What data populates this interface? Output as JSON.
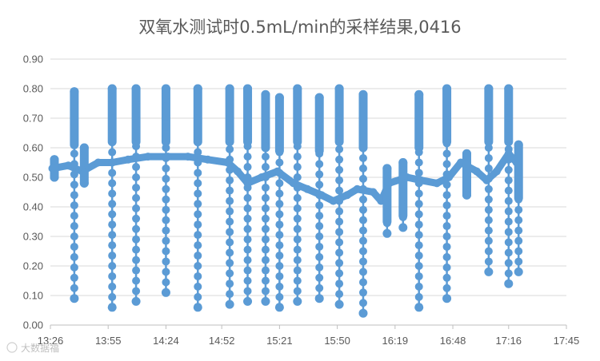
{
  "chart_data": {
    "type": "line",
    "title": "双氧水测试时0.5mL/min的采样结果,0416",
    "xlabel": "",
    "ylabel": "",
    "x_tick_labels": [
      "13:26",
      "13:55",
      "14:24",
      "14:52",
      "15:21",
      "15:50",
      "16:19",
      "16:48",
      "17:16",
      "17:45"
    ],
    "x_range_minutes": [
      806,
      1065
    ],
    "y_tick_labels": [
      "0.00",
      "0.10",
      "0.20",
      "0.30",
      "0.40",
      "0.50",
      "0.60",
      "0.70",
      "0.80",
      "0.90"
    ],
    "ylim": [
      0,
      0.9
    ],
    "grid": "horizontal",
    "legend": "none",
    "series_color": "#5b9bd5",
    "marker": "circle",
    "baseline": [
      [
        "13:27",
        0.53
      ],
      [
        "13:35",
        0.54
      ],
      [
        "13:42",
        0.52
      ],
      [
        "13:50",
        0.55
      ],
      [
        "13:57",
        0.55
      ],
      [
        "14:05",
        0.56
      ],
      [
        "14:15",
        0.57
      ],
      [
        "14:25",
        0.57
      ],
      [
        "14:35",
        0.57
      ],
      [
        "14:45",
        0.56
      ],
      [
        "14:55",
        0.55
      ],
      [
        "15:00",
        0.52
      ],
      [
        "15:05",
        0.48
      ],
      [
        "15:12",
        0.5
      ],
      [
        "15:20",
        0.52
      ],
      [
        "15:28",
        0.48
      ],
      [
        "15:35",
        0.46
      ],
      [
        "15:42",
        0.44
      ],
      [
        "15:48",
        0.42
      ],
      [
        "15:55",
        0.44
      ],
      [
        "16:00",
        0.46
      ],
      [
        "16:08",
        0.45
      ],
      [
        "16:12",
        0.42
      ],
      [
        "16:16",
        0.48
      ],
      [
        "16:25",
        0.5
      ],
      [
        "16:32",
        0.49
      ],
      [
        "16:40",
        0.48
      ],
      [
        "16:46",
        0.5
      ],
      [
        "16:52",
        0.55
      ],
      [
        "17:00",
        0.52
      ],
      [
        "17:05",
        0.49
      ],
      [
        "17:10",
        0.52
      ],
      [
        "17:16",
        0.58
      ],
      [
        "17:20",
        0.55
      ]
    ],
    "spikes": [
      {
        "time": "13:28",
        "min": 0.5,
        "max": 0.56
      },
      {
        "time": "13:38",
        "min": 0.09,
        "max": 0.79
      },
      {
        "time": "13:43",
        "min": 0.48,
        "max": 0.6
      },
      {
        "time": "13:57",
        "min": 0.06,
        "max": 0.8
      },
      {
        "time": "14:09",
        "min": 0.08,
        "max": 0.8
      },
      {
        "time": "14:24",
        "min": 0.11,
        "max": 0.8
      },
      {
        "time": "14:40",
        "min": 0.06,
        "max": 0.8
      },
      {
        "time": "14:56",
        "min": 0.07,
        "max": 0.8
      },
      {
        "time": "15:05",
        "min": 0.08,
        "max": 0.8
      },
      {
        "time": "15:14",
        "min": 0.08,
        "max": 0.78
      },
      {
        "time": "15:21",
        "min": 0.06,
        "max": 0.77
      },
      {
        "time": "15:30",
        "min": 0.08,
        "max": 0.8
      },
      {
        "time": "15:41",
        "min": 0.09,
        "max": 0.77
      },
      {
        "time": "15:51",
        "min": 0.07,
        "max": 0.8
      },
      {
        "time": "16:03",
        "min": 0.04,
        "max": 0.78
      },
      {
        "time": "16:15",
        "min": 0.31,
        "max": 0.53
      },
      {
        "time": "16:23",
        "min": 0.33,
        "max": 0.55
      },
      {
        "time": "16:31",
        "min": 0.06,
        "max": 0.78
      },
      {
        "time": "16:45",
        "min": 0.09,
        "max": 0.8
      },
      {
        "time": "16:55",
        "min": 0.44,
        "max": 0.58
      },
      {
        "time": "17:06",
        "min": 0.18,
        "max": 0.8
      },
      {
        "time": "17:16",
        "min": 0.14,
        "max": 0.8
      },
      {
        "time": "17:21",
        "min": 0.18,
        "max": 0.61
      }
    ]
  },
  "watermark": "大数据福"
}
